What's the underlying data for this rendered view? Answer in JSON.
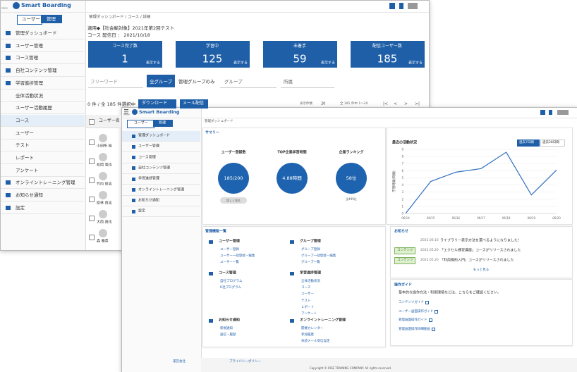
{
  "back": {
    "logo": "Smart Boarding",
    "menu_label": "MENU",
    "tabs": [
      "ユーザー",
      "管理"
    ],
    "menu": [
      "管理ダッシュボード",
      "ユーザー管理",
      "コース管理",
      "自社コンテンツ管理",
      "学習進捗管理",
      "全体活動状況",
      "ユーザー活動履歴",
      "コース",
      "ユーザー",
      "テスト",
      "レポート",
      "アンケート",
      "オンライントレーニング管理",
      "お知らせ通知",
      "設定"
    ],
    "breadcrumb": "管理ダッシュボード / コース / 詳細",
    "course_title": "適用◆【社会輸対象】2021年第2回テスト",
    "delivery": "コース 配信日 ： 2021/10/18",
    "cards": [
      {
        "label": "コース完了数",
        "value": "1",
        "link": "表示する"
      },
      {
        "label": "学習中",
        "value": "125",
        "link": "表示する"
      },
      {
        "label": "未着手",
        "value": "59",
        "link": "表示する"
      },
      {
        "label": "配信ユーザー数",
        "value": "185",
        "link": "表示する"
      }
    ],
    "filters": {
      "keyword": "フリーワード",
      "all": "全グループ",
      "managed": "管理グループのみ",
      "group": "グループ",
      "dept": "所属"
    },
    "selection": "0 件 / 全 185 件選択中",
    "download": "ダウンロード",
    "mail": "メール配信",
    "per_page_label": "表示件数",
    "per_page": "20",
    "range": "全 185 件中 1～20",
    "pager": [
      "|<",
      "<",
      ">",
      ">|"
    ],
    "column": "ユーザー名",
    "users": [
      "小田所 裕",
      "松岡 竜也",
      "竹内 俊吉",
      "原林 良吉",
      "大西 直也",
      "森 雅英"
    ]
  },
  "front": {
    "logo": "Smart Boarding",
    "menu_label": "MENU",
    "tabs": [
      "ユーザー",
      "管理"
    ],
    "menu": [
      "管理ダッシュボード",
      "ユーザー管理",
      "コース管理",
      "自社コンテンツ管理",
      "学習進捗管理",
      "オンライントレーニング管理",
      "お知らせ通知",
      "設定"
    ],
    "breadcrumb": "管理ダッシュボード",
    "summary": "サマリー",
    "stats": [
      {
        "label": "ユーザー登録数",
        "value": "185/200",
        "note": "詳しく見る"
      },
      {
        "label": "TOP企業学習時間",
        "value": "4.88時間"
      },
      {
        "label": "企業ランキング",
        "value": "58位",
        "note": "全499社"
      }
    ],
    "functions": {
      "title": "管理機能一覧",
      "groups": [
        {
          "title": "ユーザー管理",
          "items": [
            "ユーザー登録",
            "ユーザー一括登録・編集",
            "ユーザー一覧"
          ]
        },
        {
          "title": "グループ管理",
          "items": [
            "グループ登録",
            "グループ一括登録・編集",
            "グループ一覧"
          ]
        },
        {
          "title": "コース管理",
          "items": [
            "自社プログラム",
            "R社プログラム"
          ]
        },
        {
          "title": "学習進捗管理",
          "items": [
            "全体活動状況",
            "コース",
            "ユーザー",
            "テスト",
            "レポート",
            "アンケート"
          ]
        },
        {
          "title": "お知らせ通知",
          "items": [
            "新規通知",
            "送信・履歴"
          ]
        },
        {
          "title": "オンライントレーニング管理",
          "items": [
            "開催カレンダー",
            "参加履歴",
            "未読メール受信設定"
          ]
        }
      ]
    },
    "notices": {
      "title": "お知らせ",
      "items": [
        {
          "date": "2022.06.16",
          "text": "ライブラリー表示方法を選べるようになりました！"
        },
        {
          "tag": "コンテンツ",
          "date": "2022.05.20",
          "text": "「エクセル練習講座」コースがリリースされました"
        },
        {
          "tag": "コンテンツ",
          "date": "2022.05.20",
          "text": "「利用規約入門」コースがリリースされました"
        }
      ],
      "more": "もっと見る"
    },
    "guide": {
      "title": "操作ガイド",
      "desc": "基本的な操作方法・利用環境などは、こちらをご確認ください。",
      "links": [
        "コンテンツガイド",
        "ユーザー画面操作ガイド",
        "管理画面操作ガイド",
        "管理画面操作詳細動画"
      ]
    },
    "footer": {
      "company": "運営会社",
      "privacy": "プライバシーポリシー",
      "copyright": "Copyright © RISE TRAINING COMPANY. All rights reserved."
    }
  },
  "chart_data": {
    "type": "line",
    "title": "最近の活動状況",
    "buttons": [
      "過去7日間",
      "過去28日間"
    ],
    "y_label": "学習時間(時間)",
    "categories": [
      "06/14",
      "06/15",
      "06/16",
      "06/17",
      "06/18",
      "06/19",
      "06/20"
    ],
    "values": [
      0,
      4.5,
      5.8,
      6.3,
      8.6,
      2.6,
      6.1
    ],
    "color": "#2f6fc0",
    "ylim": [
      0,
      9
    ],
    "yticks": [
      0,
      1,
      2,
      3,
      4,
      5,
      6,
      7,
      8,
      9
    ],
    "grid": true
  }
}
